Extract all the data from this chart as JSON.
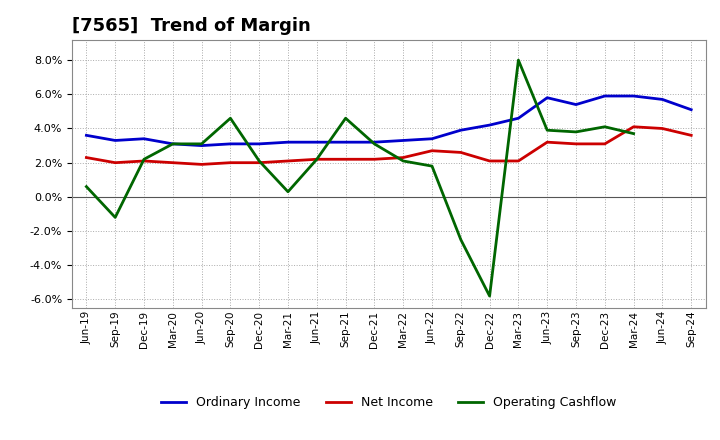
{
  "title": "[7565]  Trend of Margin",
  "x_labels": [
    "Jun-19",
    "Sep-19",
    "Dec-19",
    "Mar-20",
    "Jun-20",
    "Sep-20",
    "Dec-20",
    "Mar-21",
    "Jun-21",
    "Sep-21",
    "Dec-21",
    "Mar-22",
    "Jun-22",
    "Sep-22",
    "Dec-22",
    "Mar-23",
    "Jun-23",
    "Sep-23",
    "Dec-23",
    "Mar-24",
    "Jun-24",
    "Sep-24"
  ],
  "ordinary_income": [
    3.6,
    3.3,
    3.4,
    3.1,
    3.0,
    3.1,
    3.1,
    3.2,
    3.2,
    3.2,
    3.2,
    3.3,
    3.4,
    3.9,
    4.2,
    4.6,
    5.8,
    5.4,
    5.9,
    5.9,
    5.7,
    5.1
  ],
  "net_income": [
    2.3,
    2.0,
    2.1,
    2.0,
    1.9,
    2.0,
    2.0,
    2.1,
    2.2,
    2.2,
    2.2,
    2.3,
    2.7,
    2.6,
    2.1,
    2.1,
    3.2,
    3.1,
    3.1,
    4.1,
    4.0,
    3.6
  ],
  "operating_cashflow_x": [
    0,
    1,
    2,
    3,
    4,
    5,
    6,
    7,
    8,
    9,
    10,
    11,
    12,
    13,
    14,
    15,
    16,
    17,
    18,
    19
  ],
  "operating_cashflow_y": [
    0.6,
    -1.2,
    2.2,
    3.1,
    3.1,
    4.6,
    2.1,
    0.3,
    2.2,
    4.6,
    3.1,
    2.1,
    1.8,
    -2.5,
    -5.8,
    8.0,
    3.9,
    3.8,
    4.1,
    3.7
  ],
  "ordinary_color": "#0000cc",
  "net_income_color": "#cc0000",
  "ocf_color": "#006600",
  "ylim_min": -6.5,
  "ylim_max": 9.2,
  "ytick_vals": [
    -6.0,
    -4.0,
    -2.0,
    0.0,
    2.0,
    4.0,
    6.0,
    8.0
  ],
  "background_color": "#ffffff",
  "title_fontsize": 13,
  "legend_labels": [
    "Ordinary Income",
    "Net Income",
    "Operating Cashflow"
  ]
}
